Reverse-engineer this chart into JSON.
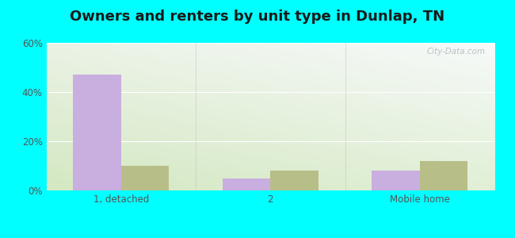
{
  "title": "Owners and renters by unit type in Dunlap, TN",
  "categories": [
    "1, detached",
    "2",
    "Mobile home"
  ],
  "owner_values": [
    47,
    5,
    8
  ],
  "renter_values": [
    10,
    8,
    12
  ],
  "owner_color": "#c9aee0",
  "renter_color": "#b8be88",
  "ylim": [
    0,
    60
  ],
  "yticks": [
    0,
    20,
    40,
    60
  ],
  "ytick_labels": [
    "0%",
    "20%",
    "40%",
    "60%"
  ],
  "bar_width": 0.32,
  "background_color": "#00ffff",
  "title_fontsize": 13,
  "watermark": "City-Data.com"
}
